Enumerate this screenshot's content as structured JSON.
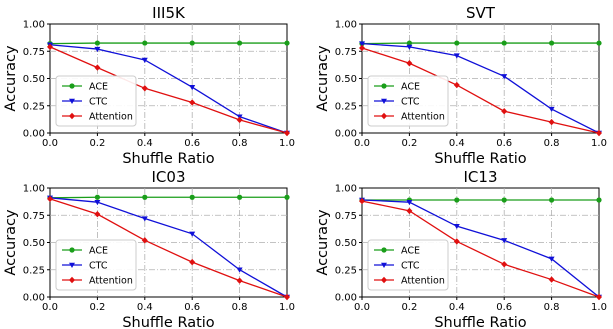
{
  "colors": {
    "ACE": "#1a9e1a",
    "CTC": "#1010d8",
    "Attention": "#e01010",
    "grid": "#b0b0b0"
  },
  "chart_data": [
    {
      "type": "line",
      "title": "III5K",
      "xlabel": "Shuffle Ratio",
      "ylabel": "Accuracy",
      "xlim": [
        0,
        1
      ],
      "ylim": [
        0,
        1
      ],
      "x": [
        0.0,
        0.2,
        0.4,
        0.6,
        0.8,
        1.0
      ],
      "xticks": [
        "0.0",
        "0.2",
        "0.4",
        "0.6",
        "0.8",
        "1.0"
      ],
      "yticks": [
        "0.00",
        "0.25",
        "0.50",
        "0.75",
        "1.00"
      ],
      "grid": true,
      "legend": "lower-left",
      "series": [
        {
          "name": "ACE",
          "values": [
            0.82,
            0.825,
            0.825,
            0.825,
            0.825,
            0.825
          ]
        },
        {
          "name": "CTC",
          "values": [
            0.81,
            0.77,
            0.67,
            0.42,
            0.15,
            0.0
          ]
        },
        {
          "name": "Attention",
          "values": [
            0.79,
            0.6,
            0.41,
            0.28,
            0.12,
            0.0
          ]
        }
      ]
    },
    {
      "type": "line",
      "title": "SVT",
      "xlabel": "Shuffle Ratio",
      "ylabel": "Accuracy",
      "xlim": [
        0,
        1
      ],
      "ylim": [
        0,
        1
      ],
      "x": [
        0.0,
        0.2,
        0.4,
        0.6,
        0.8,
        1.0
      ],
      "xticks": [
        "0.0",
        "0.2",
        "0.4",
        "0.6",
        "0.8",
        "1.0"
      ],
      "yticks": [
        "0.00",
        "0.25",
        "0.50",
        "0.75",
        "1.00"
      ],
      "grid": true,
      "legend": "lower-left",
      "series": [
        {
          "name": "ACE",
          "values": [
            0.82,
            0.825,
            0.825,
            0.825,
            0.825,
            0.825
          ]
        },
        {
          "name": "CTC",
          "values": [
            0.82,
            0.79,
            0.71,
            0.52,
            0.22,
            0.0
          ]
        },
        {
          "name": "Attention",
          "values": [
            0.78,
            0.64,
            0.44,
            0.2,
            0.1,
            0.0
          ]
        }
      ]
    },
    {
      "type": "line",
      "title": "IC03",
      "xlabel": "Shuffle Ratio",
      "ylabel": "Accuracy",
      "xlim": [
        0,
        1
      ],
      "ylim": [
        0,
        1
      ],
      "x": [
        0.0,
        0.2,
        0.4,
        0.6,
        0.8,
        1.0
      ],
      "xticks": [
        "0.0",
        "0.2",
        "0.4",
        "0.6",
        "0.8",
        "1.0"
      ],
      "yticks": [
        "0.00",
        "0.25",
        "0.50",
        "0.75",
        "1.00"
      ],
      "grid": true,
      "legend": "lower-left",
      "series": [
        {
          "name": "ACE",
          "values": [
            0.91,
            0.915,
            0.915,
            0.915,
            0.915,
            0.915
          ]
        },
        {
          "name": "CTC",
          "values": [
            0.91,
            0.87,
            0.72,
            0.58,
            0.25,
            0.0
          ]
        },
        {
          "name": "Attention",
          "values": [
            0.9,
            0.76,
            0.52,
            0.32,
            0.15,
            0.0
          ]
        }
      ]
    },
    {
      "type": "line",
      "title": "IC13",
      "xlabel": "Shuffle Ratio",
      "ylabel": "Accuracy",
      "xlim": [
        0,
        1
      ],
      "ylim": [
        0,
        1
      ],
      "x": [
        0.0,
        0.2,
        0.4,
        0.6,
        0.8,
        1.0
      ],
      "xticks": [
        "0.0",
        "0.2",
        "0.4",
        "0.6",
        "0.8",
        "1.0"
      ],
      "yticks": [
        "0.00",
        "0.25",
        "0.50",
        "0.75",
        "1.00"
      ],
      "grid": true,
      "legend": "lower-left",
      "series": [
        {
          "name": "ACE",
          "values": [
            0.89,
            0.89,
            0.89,
            0.89,
            0.89,
            0.89
          ]
        },
        {
          "name": "CTC",
          "values": [
            0.89,
            0.87,
            0.65,
            0.52,
            0.35,
            0.0
          ]
        },
        {
          "name": "Attention",
          "values": [
            0.88,
            0.79,
            0.51,
            0.3,
            0.16,
            0.0
          ]
        }
      ]
    }
  ]
}
